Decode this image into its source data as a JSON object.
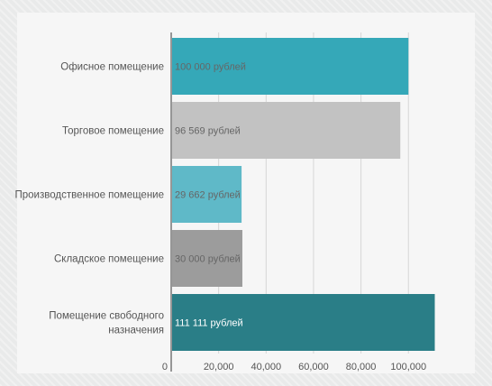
{
  "chart_data": {
    "type": "bar",
    "orientation": "horizontal",
    "categories": [
      [
        "Офисное помещение"
      ],
      [
        "Торговое помещение"
      ],
      [
        "Производственное помещение"
      ],
      [
        "Складское помещение"
      ],
      [
        "Помещение свободного",
        "назначения"
      ]
    ],
    "values": [
      100000,
      96569,
      29662,
      30000,
      111111
    ],
    "data_labels": [
      "100 000 рублей",
      "96 569 рублей",
      "29 662 рублей",
      "30 000 рублей",
      "111 111 рублей"
    ],
    "colors": [
      "#35a8b8",
      "#c2c2c2",
      "#5fb9c8",
      "#9c9c9c",
      "#2a7e87"
    ],
    "label_colors": [
      "#666666",
      "#666666",
      "#666666",
      "#666666",
      "#ffffff"
    ],
    "xlim": [
      0,
      117000
    ],
    "x_ticks": [
      0,
      20000,
      40000,
      60000,
      80000,
      100000
    ],
    "x_tick_labels": [
      "0",
      "20,000",
      "40,000",
      "60,000",
      "80,000",
      "100,000"
    ],
    "grid": true,
    "title": "",
    "xlabel": "",
    "ylabel": ""
  }
}
